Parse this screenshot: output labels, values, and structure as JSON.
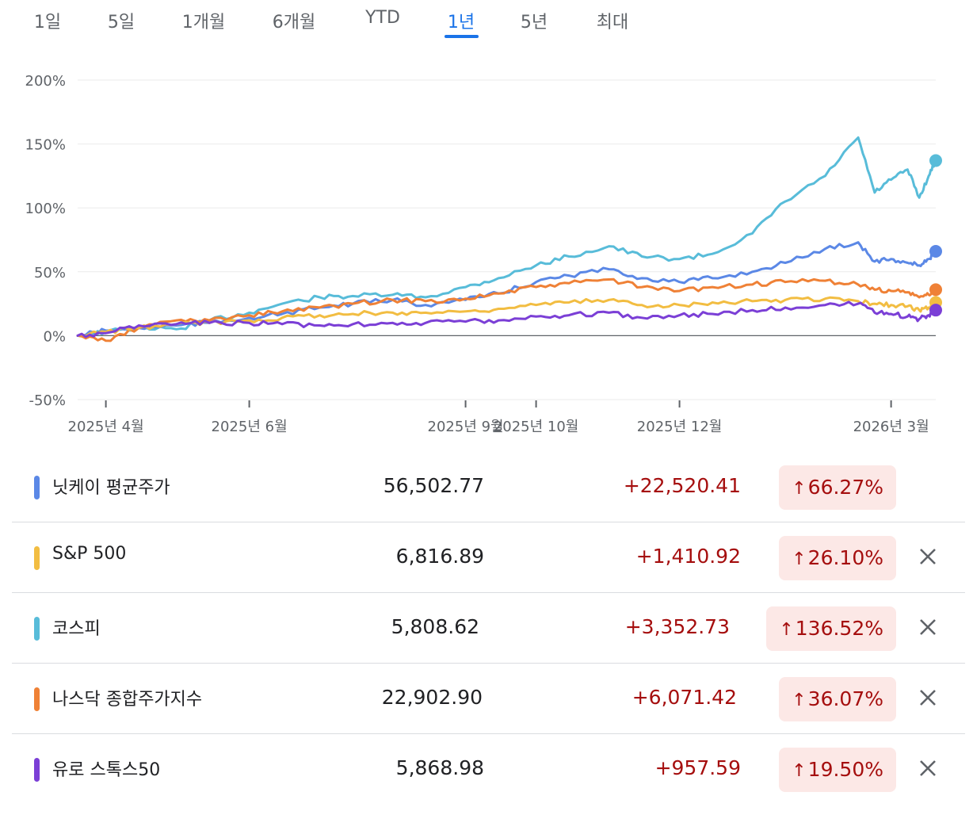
{
  "tabs": [
    {
      "label": "1일",
      "active": false
    },
    {
      "label": "5일",
      "active": false
    },
    {
      "label": "1개월",
      "active": false
    },
    {
      "label": "6개월",
      "active": false
    },
    {
      "label": "YTD",
      "active": false
    },
    {
      "label": "1년",
      "active": true
    },
    {
      "label": "5년",
      "active": false
    },
    {
      "label": "최대",
      "active": false
    }
  ],
  "chart_data": {
    "type": "line",
    "ylim": [
      -50,
      200
    ],
    "y_ticks": [
      200,
      150,
      100,
      50,
      0,
      -50
    ],
    "y_tick_labels": [
      "200%",
      "150%",
      "100%",
      "50%",
      "0%",
      "-50%"
    ],
    "x_range": [
      "2025-03-20",
      "2026-03-20"
    ],
    "x_ticks": [
      {
        "date": "2025-04-01",
        "label": "2025년 4월"
      },
      {
        "date": "2025-06-01",
        "label": "2025년 6월"
      },
      {
        "date": "2025-09-01",
        "label": "2025년 9월"
      },
      {
        "date": "2025-10-01",
        "label": "2025년 10월"
      },
      {
        "date": "2025-12-01",
        "label": "2025년 12월"
      },
      {
        "date": "2026-03-01",
        "label": "2026년 3월"
      }
    ],
    "grid": true,
    "series": [
      {
        "name": "코스피",
        "color": "#58bcd9",
        "points": [
          [
            "2025-03-20",
            0
          ],
          [
            "2025-04-01",
            3
          ],
          [
            "2025-04-15",
            6
          ],
          [
            "2025-05-01",
            5
          ],
          [
            "2025-05-15",
            12
          ],
          [
            "2025-06-01",
            18
          ],
          [
            "2025-06-15",
            25
          ],
          [
            "2025-07-01",
            30
          ],
          [
            "2025-07-15",
            31
          ],
          [
            "2025-08-01",
            32
          ],
          [
            "2025-08-15",
            30
          ],
          [
            "2025-09-01",
            38
          ],
          [
            "2025-09-15",
            45
          ],
          [
            "2025-10-01",
            55
          ],
          [
            "2025-10-15",
            62
          ],
          [
            "2025-11-01",
            70
          ],
          [
            "2025-11-15",
            62
          ],
          [
            "2025-12-01",
            60
          ],
          [
            "2025-12-15",
            64
          ],
          [
            "2026-01-01",
            80
          ],
          [
            "2026-01-15",
            105
          ],
          [
            "2026-02-01",
            125
          ],
          [
            "2026-02-15",
            155
          ],
          [
            "2026-02-22",
            112
          ],
          [
            "2026-03-01",
            122
          ],
          [
            "2026-03-08",
            130
          ],
          [
            "2026-03-13",
            108
          ],
          [
            "2026-03-17",
            125
          ],
          [
            "2026-03-20",
            137
          ]
        ]
      },
      {
        "name": "닛케이 평균주가",
        "color": "#5b88e6",
        "points": [
          [
            "2025-03-20",
            0
          ],
          [
            "2025-04-01",
            4
          ],
          [
            "2025-04-15",
            6
          ],
          [
            "2025-05-01",
            8
          ],
          [
            "2025-05-15",
            10
          ],
          [
            "2025-06-01",
            14
          ],
          [
            "2025-06-15",
            17
          ],
          [
            "2025-07-01",
            22
          ],
          [
            "2025-07-15",
            25
          ],
          [
            "2025-08-01",
            28
          ],
          [
            "2025-08-15",
            24
          ],
          [
            "2025-09-01",
            28
          ],
          [
            "2025-09-15",
            33
          ],
          [
            "2025-10-01",
            42
          ],
          [
            "2025-10-15",
            47
          ],
          [
            "2025-11-01",
            52
          ],
          [
            "2025-11-15",
            45
          ],
          [
            "2025-12-01",
            42
          ],
          [
            "2025-12-15",
            45
          ],
          [
            "2026-01-01",
            50
          ],
          [
            "2026-01-15",
            57
          ],
          [
            "2026-02-01",
            68
          ],
          [
            "2026-02-15",
            73
          ],
          [
            "2026-02-22",
            58
          ],
          [
            "2026-03-01",
            60
          ],
          [
            "2026-03-08",
            57
          ],
          [
            "2026-03-13",
            55
          ],
          [
            "2026-03-17",
            60
          ],
          [
            "2026-03-20",
            66
          ]
        ]
      },
      {
        "name": "나스닥 종합주가지수",
        "color": "#ef8136",
        "points": [
          [
            "2025-03-20",
            0
          ],
          [
            "2025-04-01",
            -4
          ],
          [
            "2025-04-15",
            6
          ],
          [
            "2025-05-01",
            12
          ],
          [
            "2025-05-15",
            12
          ],
          [
            "2025-06-01",
            16
          ],
          [
            "2025-06-15",
            19
          ],
          [
            "2025-07-01",
            22
          ],
          [
            "2025-07-15",
            25
          ],
          [
            "2025-08-01",
            28
          ],
          [
            "2025-08-15",
            27
          ],
          [
            "2025-09-01",
            29
          ],
          [
            "2025-09-15",
            33
          ],
          [
            "2025-10-01",
            38
          ],
          [
            "2025-10-15",
            41
          ],
          [
            "2025-11-01",
            44
          ],
          [
            "2025-11-15",
            38
          ],
          [
            "2025-12-01",
            35
          ],
          [
            "2025-12-15",
            38
          ],
          [
            "2026-01-01",
            40
          ],
          [
            "2026-01-15",
            42
          ],
          [
            "2026-02-01",
            43
          ],
          [
            "2026-02-15",
            40
          ],
          [
            "2026-02-22",
            36
          ],
          [
            "2026-03-01",
            35
          ],
          [
            "2026-03-08",
            34
          ],
          [
            "2026-03-13",
            30
          ],
          [
            "2026-03-17",
            32
          ],
          [
            "2026-03-20",
            36
          ]
        ]
      },
      {
        "name": "S&P 500",
        "color": "#f2bd42",
        "points": [
          [
            "2025-03-20",
            0
          ],
          [
            "2025-04-01",
            3
          ],
          [
            "2025-04-15",
            6
          ],
          [
            "2025-05-01",
            9
          ],
          [
            "2025-05-15",
            10
          ],
          [
            "2025-06-01",
            12
          ],
          [
            "2025-06-15",
            14
          ],
          [
            "2025-07-01",
            16
          ],
          [
            "2025-07-15",
            17
          ],
          [
            "2025-08-01",
            18
          ],
          [
            "2025-08-15",
            18
          ],
          [
            "2025-09-01",
            19
          ],
          [
            "2025-09-15",
            21
          ],
          [
            "2025-10-01",
            24
          ],
          [
            "2025-10-15",
            26
          ],
          [
            "2025-11-01",
            28
          ],
          [
            "2025-11-15",
            24
          ],
          [
            "2025-12-01",
            24
          ],
          [
            "2025-12-15",
            26
          ],
          [
            "2026-01-01",
            27
          ],
          [
            "2026-01-15",
            28
          ],
          [
            "2026-02-01",
            29
          ],
          [
            "2026-02-15",
            27
          ],
          [
            "2026-02-22",
            25
          ],
          [
            "2026-03-01",
            24
          ],
          [
            "2026-03-08",
            23
          ],
          [
            "2026-03-13",
            20
          ],
          [
            "2026-03-17",
            22
          ],
          [
            "2026-03-20",
            26
          ]
        ]
      },
      {
        "name": "유로 스톡스50",
        "color": "#7b3fd6",
        "points": [
          [
            "2025-03-20",
            0
          ],
          [
            "2025-04-01",
            2
          ],
          [
            "2025-04-15",
            8
          ],
          [
            "2025-05-01",
            9
          ],
          [
            "2025-05-15",
            10
          ],
          [
            "2025-06-01",
            10
          ],
          [
            "2025-06-15",
            9
          ],
          [
            "2025-07-01",
            8
          ],
          [
            "2025-07-15",
            9
          ],
          [
            "2025-08-01",
            10
          ],
          [
            "2025-08-15",
            10
          ],
          [
            "2025-09-01",
            11
          ],
          [
            "2025-09-15",
            12
          ],
          [
            "2025-10-01",
            15
          ],
          [
            "2025-10-15",
            16
          ],
          [
            "2025-11-01",
            18
          ],
          [
            "2025-11-15",
            14
          ],
          [
            "2025-12-01",
            16
          ],
          [
            "2025-12-15",
            17
          ],
          [
            "2026-01-01",
            20
          ],
          [
            "2026-01-15",
            22
          ],
          [
            "2026-02-01",
            24
          ],
          [
            "2026-02-15",
            25
          ],
          [
            "2026-02-22",
            18
          ],
          [
            "2026-03-01",
            17
          ],
          [
            "2026-03-08",
            15
          ],
          [
            "2026-03-13",
            13
          ],
          [
            "2026-03-17",
            16
          ],
          [
            "2026-03-20",
            20
          ]
        ]
      }
    ]
  },
  "rows": [
    {
      "name": "닛케이 평균주가",
      "color": "#5b88e6",
      "price": "56,502.77",
      "change": "+22,520.41",
      "percent": "66.27%",
      "arrow": "↑",
      "removable": false
    },
    {
      "name": "S&P 500",
      "color": "#f2bd42",
      "price": "6,816.89",
      "change": "+1,410.92",
      "percent": "26.10%",
      "arrow": "↑",
      "removable": true
    },
    {
      "name": "코스피",
      "color": "#58bcd9",
      "price": "5,808.62",
      "change": "+3,352.73",
      "percent": "136.52%",
      "arrow": "↑",
      "removable": true
    },
    {
      "name": "나스닥 종합주가지수",
      "color": "#ef8136",
      "price": "22,902.90",
      "change": "+6,071.42",
      "percent": "36.07%",
      "arrow": "↑",
      "removable": true
    },
    {
      "name": "유로 스톡스50",
      "color": "#7b3fd6",
      "price": "5,868.98",
      "change": "+957.59",
      "percent": "19.50%",
      "arrow": "↑",
      "removable": true
    }
  ]
}
